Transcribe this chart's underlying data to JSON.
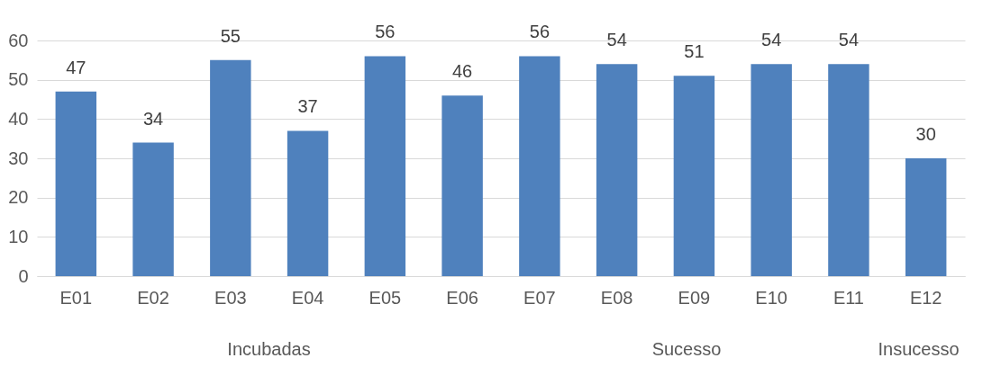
{
  "chart_data": {
    "type": "bar",
    "categories": [
      "E01",
      "E02",
      "E03",
      "E04",
      "E05",
      "E06",
      "E07",
      "E08",
      "E09",
      "E10",
      "E11",
      "E12"
    ],
    "values": [
      47,
      34,
      55,
      37,
      56,
      46,
      56,
      54,
      51,
      54,
      54,
      30
    ],
    "color": "#4f81bd",
    "ylim": [
      0,
      60
    ],
    "yticks": [
      0,
      10,
      20,
      30,
      40,
      50,
      60
    ],
    "grid": "y",
    "data_labels": true,
    "annotations": [
      "Incubadas",
      "Sucesso",
      "Insucesso"
    ]
  }
}
